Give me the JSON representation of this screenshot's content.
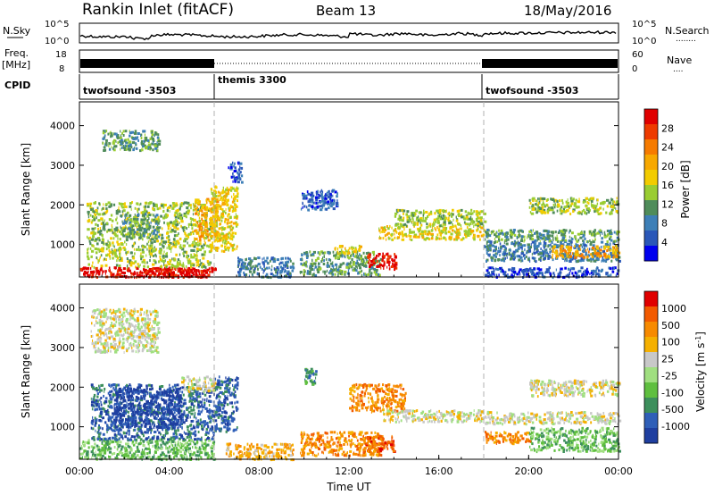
{
  "header": {
    "site": "Rankin Inlet (fitACF)",
    "beam": "Beam 13",
    "date": "18/May/2016"
  },
  "status_panels": {
    "nsky": {
      "label": "N.Sky",
      "ticks_left": [
        "10^5",
        "10^0"
      ],
      "ticks_right": [
        "10^5",
        "10^0"
      ],
      "right_label": "N.Search",
      "right_legend": "........"
    },
    "freq": {
      "label_line1": "Freq.",
      "label_line2": "[MHz]",
      "ticks_left": [
        "18",
        "8"
      ],
      "ticks_right": [
        "60",
        "0"
      ],
      "right_label": "Nave",
      "right_legend": "...."
    },
    "cpid": {
      "label": "CPID",
      "segments": [
        {
          "name": "twofsound -3503",
          "start_hour": 0,
          "end_hour": 6
        },
        {
          "name": "themis 3300",
          "start_hour": 6,
          "end_hour": 18
        },
        {
          "name": "twofsound -3503",
          "start_hour": 18,
          "end_hour": 24
        }
      ]
    }
  },
  "chart_data": [
    {
      "type": "heatmap",
      "title": "",
      "xlabel": "Time UT",
      "ylabel": "Slant Range [km]",
      "xlim": [
        0,
        24
      ],
      "ylim": [
        180,
        4600
      ],
      "xticks": [
        "00:00",
        "04:00",
        "08:00",
        "12:00",
        "16:00",
        "20:00",
        "00:00"
      ],
      "yticks": [
        1000,
        2000,
        3000,
        4000
      ],
      "colorbar": {
        "label": "Power [dB]",
        "ticks": [
          "4",
          "8",
          "12",
          "16",
          "20",
          "24",
          "28"
        ],
        "colors": [
          "#0000ee",
          "#2a57b8",
          "#3d7fb7",
          "#4f8c5a",
          "#9acd32",
          "#f2cc00",
          "#f7a800",
          "#f67b00",
          "#ee3b00",
          "#e00000"
        ]
      },
      "mode_change_hours": [
        6,
        18
      ],
      "regions": [
        {
          "t": [
            0.0,
            6.1
          ],
          "r": [
            200,
            450
          ],
          "level": 9
        },
        {
          "t": [
            3.0,
            5.8
          ],
          "r": [
            200,
            420
          ],
          "level": 9
        },
        {
          "t": [
            0.3,
            5.8
          ],
          "r": [
            450,
            2100
          ],
          "level": 4
        },
        {
          "t": [
            1.8,
            3.5
          ],
          "r": [
            1200,
            1800
          ],
          "level": 3
        },
        {
          "t": [
            5.1,
            6.1
          ],
          "r": [
            1100,
            2200
          ],
          "level": 6
        },
        {
          "t": [
            5.8,
            7.0
          ],
          "r": [
            850,
            2500
          ],
          "level": 5
        },
        {
          "t": [
            6.6,
            7.2
          ],
          "r": [
            2600,
            3100
          ],
          "level": 1
        },
        {
          "t": [
            1.0,
            3.5
          ],
          "r": [
            3400,
            3900
          ],
          "level": 3
        },
        {
          "t": [
            7.0,
            9.5
          ],
          "r": [
            200,
            700
          ],
          "level": 2
        },
        {
          "t": [
            9.8,
            13.4
          ],
          "r": [
            250,
            850
          ],
          "level": 3
        },
        {
          "t": [
            12.8,
            14.1
          ],
          "r": [
            400,
            800
          ],
          "level": 9
        },
        {
          "t": [
            11.3,
            12.5
          ],
          "r": [
            800,
            1000
          ],
          "level": 5
        },
        {
          "t": [
            13.3,
            18.0
          ],
          "r": [
            1150,
            1500
          ],
          "level": 5
        },
        {
          "t": [
            14.0,
            18.0
          ],
          "r": [
            1500,
            1900
          ],
          "level": 4
        },
        {
          "t": [
            18.0,
            24.0
          ],
          "r": [
            1100,
            1400
          ],
          "level": 3
        },
        {
          "t": [
            18.0,
            24.0
          ],
          "r": [
            600,
            1100
          ],
          "level": 2
        },
        {
          "t": [
            20.0,
            24.0
          ],
          "r": [
            1800,
            2200
          ],
          "level": 4
        },
        {
          "t": [
            21.0,
            24.0
          ],
          "r": [
            700,
            1000
          ],
          "level": 6
        },
        {
          "t": [
            18.0,
            24.0
          ],
          "r": [
            200,
            450
          ],
          "level": 1
        },
        {
          "t": [
            9.8,
            11.5
          ],
          "r": [
            1900,
            2400
          ],
          "level": 1
        }
      ]
    },
    {
      "type": "heatmap",
      "title": "",
      "xlabel": "Time UT",
      "ylabel": "Slant Range [km]",
      "xlim": [
        0,
        24
      ],
      "ylim": [
        180,
        4600
      ],
      "xticks": [
        "00:00",
        "04:00",
        "08:00",
        "12:00",
        "16:00",
        "20:00",
        "00:00"
      ],
      "yticks": [
        1000,
        2000,
        3000,
        4000
      ],
      "colorbar": {
        "label": "Velocity [m s^-1]",
        "ticks": [
          "1000",
          "500",
          "100",
          "25",
          "-25",
          "-100",
          "-500",
          "-1000"
        ],
        "colors": [
          "#1f3fa0",
          "#2f5fb8",
          "#3d8f5c",
          "#5fbf3f",
          "#a0df80",
          "#c8c8c8",
          "#f5b000",
          "#f78a00",
          "#f25a00",
          "#e00000"
        ]
      },
      "mode_change_hours": [
        6,
        18
      ],
      "regions": [
        {
          "t": [
            0.0,
            6.0
          ],
          "r": [
            200,
            700
          ],
          "level": 3
        },
        {
          "t": [
            0.5,
            6.0
          ],
          "r": [
            700,
            2100
          ],
          "level": 1
        },
        {
          "t": [
            1.5,
            4.5
          ],
          "r": [
            1000,
            2000
          ],
          "level": 0
        },
        {
          "t": [
            0.5,
            3.5
          ],
          "r": [
            2900,
            4000
          ],
          "level": 5
        },
        {
          "t": [
            4.5,
            6.0
          ],
          "r": [
            1900,
            2300
          ],
          "level": 5
        },
        {
          "t": [
            6.0,
            7.0
          ],
          "r": [
            900,
            2300
          ],
          "level": 1
        },
        {
          "t": [
            6.5,
            9.5
          ],
          "r": [
            200,
            600
          ],
          "level": 6
        },
        {
          "t": [
            9.8,
            13.5
          ],
          "r": [
            300,
            900
          ],
          "level": 7
        },
        {
          "t": [
            12.7,
            14.0
          ],
          "r": [
            400,
            800
          ],
          "level": 8
        },
        {
          "t": [
            12.0,
            14.5
          ],
          "r": [
            1400,
            2100
          ],
          "level": 7
        },
        {
          "t": [
            13.5,
            18.0
          ],
          "r": [
            1150,
            1450
          ],
          "level": 5
        },
        {
          "t": [
            18.0,
            24.0
          ],
          "r": [
            1100,
            1400
          ],
          "level": 5
        },
        {
          "t": [
            20.0,
            24.0
          ],
          "r": [
            1800,
            2200
          ],
          "level": 5
        },
        {
          "t": [
            20.0,
            24.0
          ],
          "r": [
            400,
            1000
          ],
          "level": 3
        },
        {
          "t": [
            18.0,
            20.0
          ],
          "r": [
            600,
            900
          ],
          "level": 7
        },
        {
          "t": [
            10.0,
            10.5
          ],
          "r": [
            2100,
            2500
          ],
          "level": 2
        }
      ]
    }
  ]
}
